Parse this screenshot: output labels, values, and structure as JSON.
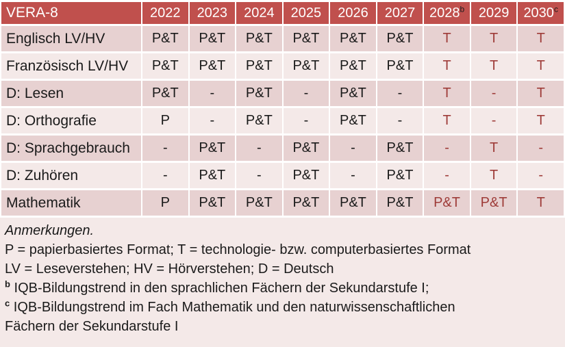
{
  "title": "VERA-8",
  "columns": [
    {
      "year": "2022",
      "sup": ""
    },
    {
      "year": "2023",
      "sup": ""
    },
    {
      "year": "2024",
      "sup": ""
    },
    {
      "year": "2025",
      "sup": ""
    },
    {
      "year": "2026",
      "sup": ""
    },
    {
      "year": "2027",
      "sup": ""
    },
    {
      "year": "2028",
      "sup": "b"
    },
    {
      "year": "2029",
      "sup": ""
    },
    {
      "year": "2030",
      "sup": "c"
    }
  ],
  "rows": [
    {
      "label": "Englisch LV/HV",
      "values": [
        "P&T",
        "P&T",
        "P&T",
        "P&T",
        "P&T",
        "P&T",
        "T",
        "T",
        "T"
      ]
    },
    {
      "label": "Französisch LV/HV",
      "values": [
        "P&T",
        "P&T",
        "P&T",
        "P&T",
        "P&T",
        "P&T",
        "T",
        "T",
        "T"
      ]
    },
    {
      "label": "D: Lesen",
      "values": [
        "P&T",
        "-",
        "P&T",
        "-",
        "P&T",
        "-",
        "T",
        "-",
        "T"
      ]
    },
    {
      "label": "D: Orthografie",
      "values": [
        "P",
        "-",
        "P&T",
        "-",
        "P&T",
        "-",
        "T",
        "-",
        "T"
      ]
    },
    {
      "label": "D: Sprachgebrauch",
      "values": [
        "-",
        "P&T",
        "-",
        "P&T",
        "-",
        "P&T",
        "-",
        "T",
        "-"
      ]
    },
    {
      "label": "D: Zuhören",
      "values": [
        "-",
        "P&T",
        "-",
        "P&T",
        "-",
        "P&T",
        "-",
        "T",
        "-"
      ]
    },
    {
      "label": "Mathematik",
      "values": [
        "P",
        "P&T",
        "P&T",
        "P&T",
        "P&T",
        "P&T",
        "P&T",
        "P&T",
        "T"
      ]
    }
  ],
  "tech_columns_from_index": 6,
  "notes": {
    "heading": "Anmerkungen.",
    "lines": [
      {
        "sup": "",
        "text": "P = papierbasiertes Format; T = technologie- bzw. computerbasiertes Format"
      },
      {
        "sup": "",
        "text": "LV = Leseverstehen; HV = Hörverstehen; D = Deutsch"
      },
      {
        "sup": "b",
        "text": "IQB-Bildungstrend in den sprachlichen Fächern der Sekundarstufe I;"
      },
      {
        "sup": "c",
        "text": "IQB-Bildungstrend im Fach Mathematik und den naturwissenschaftlichen Fächern der Sekundarstufe I"
      }
    ]
  },
  "colors": {
    "header_bg": "#C0504D",
    "header_text": "#FFFFFF",
    "row_band_dark": "#E7D1D1",
    "row_band_light": "#F4E9E8",
    "notes_bg": "#F4E9E8",
    "body_text": "#1A1A1A",
    "tech_text": "#9E3B38",
    "grid_gap": "#FFFFFF"
  }
}
